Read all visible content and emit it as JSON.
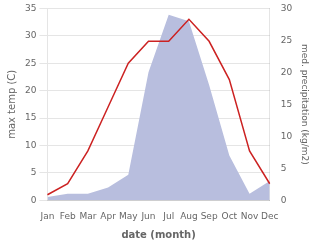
{
  "chart_data": {
    "type": "line",
    "categories": [
      "Jan",
      "Feb",
      "Mar",
      "Apr",
      "May",
      "Jun",
      "Jul",
      "Aug",
      "Sep",
      "Oct",
      "Nov",
      "Dec"
    ],
    "series": [
      {
        "type": "area",
        "axis": "y2",
        "color": "#b8bede",
        "values": [
          0.5,
          1.0,
          1.0,
          2.0,
          4.0,
          20.0,
          29.0,
          28.0,
          18.0,
          7.0,
          1.0,
          3.0
        ]
      },
      {
        "type": "line",
        "color": "#cc2222",
        "values": [
          1,
          3,
          9,
          17,
          25,
          29,
          29,
          33,
          29,
          22,
          9,
          3
        ]
      }
    ],
    "xlabel": "date (month)",
    "ylabel": "max temp (C)",
    "y2label": "med. precipitation (kg/m2)",
    "ylim": [
      0,
      35
    ],
    "yticks": [
      0,
      5,
      10,
      15,
      20,
      25,
      30,
      35
    ],
    "y2lim": [
      0,
      30
    ],
    "y2ticks": [
      0,
      5,
      10,
      15,
      20,
      25,
      30
    ],
    "grid": true
  }
}
